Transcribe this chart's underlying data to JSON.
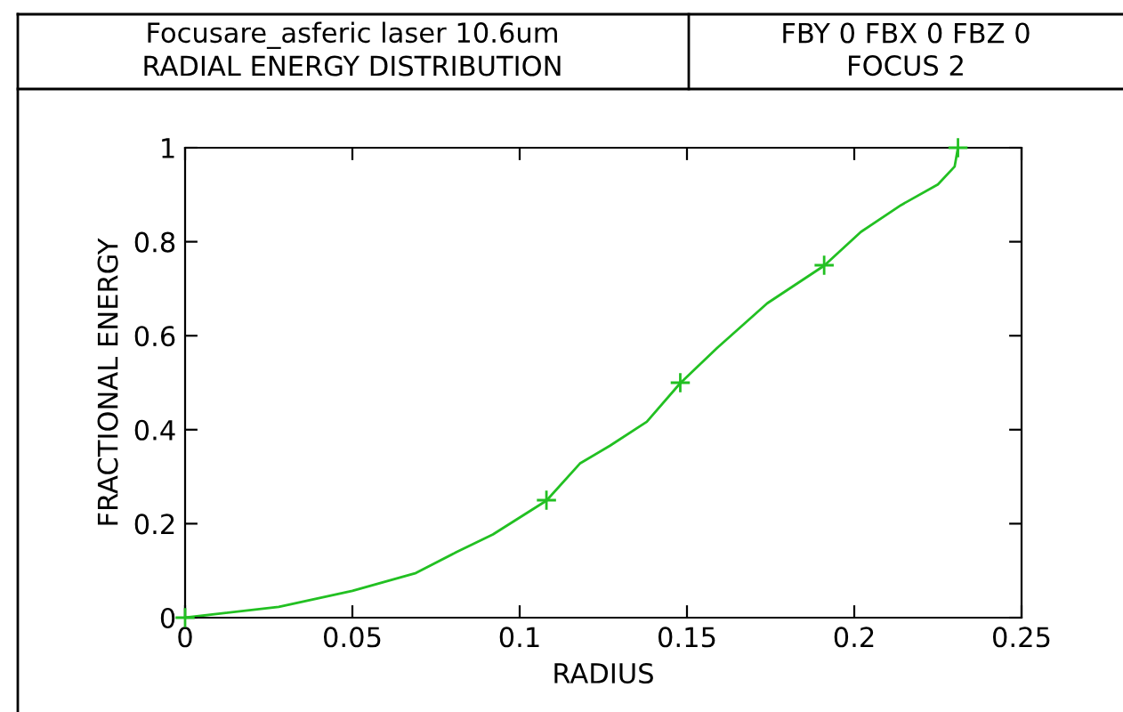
{
  "chart_data": {
    "type": "line",
    "title": "Focusare_asferic laser 10.6um\nRADIAL ENERGY DISTRIBUTION",
    "subtitle": "FBY 0 FBX 0 FBZ 0\nFOCUS 2",
    "xlabel": "RADIUS",
    "ylabel": "FRACTIONAL ENERGY",
    "x": [
      0,
      0.028,
      0.05,
      0.069,
      0.081,
      0.092,
      0.108,
      0.118,
      0.127,
      0.138,
      0.148,
      0.159,
      0.174,
      0.191,
      0.202,
      0.214,
      0.225,
      0.23,
      0.231
    ],
    "series": [
      {
        "color": "#22c022",
        "marker": "none",
        "values": [
          0,
          0.023,
          0.057,
          0.095,
          0.139,
          0.177,
          0.249,
          0.328,
          0.366,
          0.417,
          0.499,
          0.574,
          0.669,
          0.749,
          0.821,
          0.878,
          0.922,
          0.96,
          1.0
        ]
      },
      {
        "type": "scatter",
        "color": "#22c022",
        "marker": "cross",
        "x": [
          0,
          0.108,
          0.148,
          0.191,
          0.231
        ],
        "values": [
          0,
          0.25,
          0.5,
          0.75,
          1.0
        ]
      }
    ],
    "xlim": [
      0,
      0.25
    ],
    "ylim": [
      0,
      1
    ],
    "xticks": [
      0,
      0.05,
      0.1,
      0.15,
      0.2,
      0.25
    ],
    "yticks": [
      0,
      0.2,
      0.4,
      0.6,
      0.8,
      1
    ],
    "grid": false,
    "legend": false
  }
}
